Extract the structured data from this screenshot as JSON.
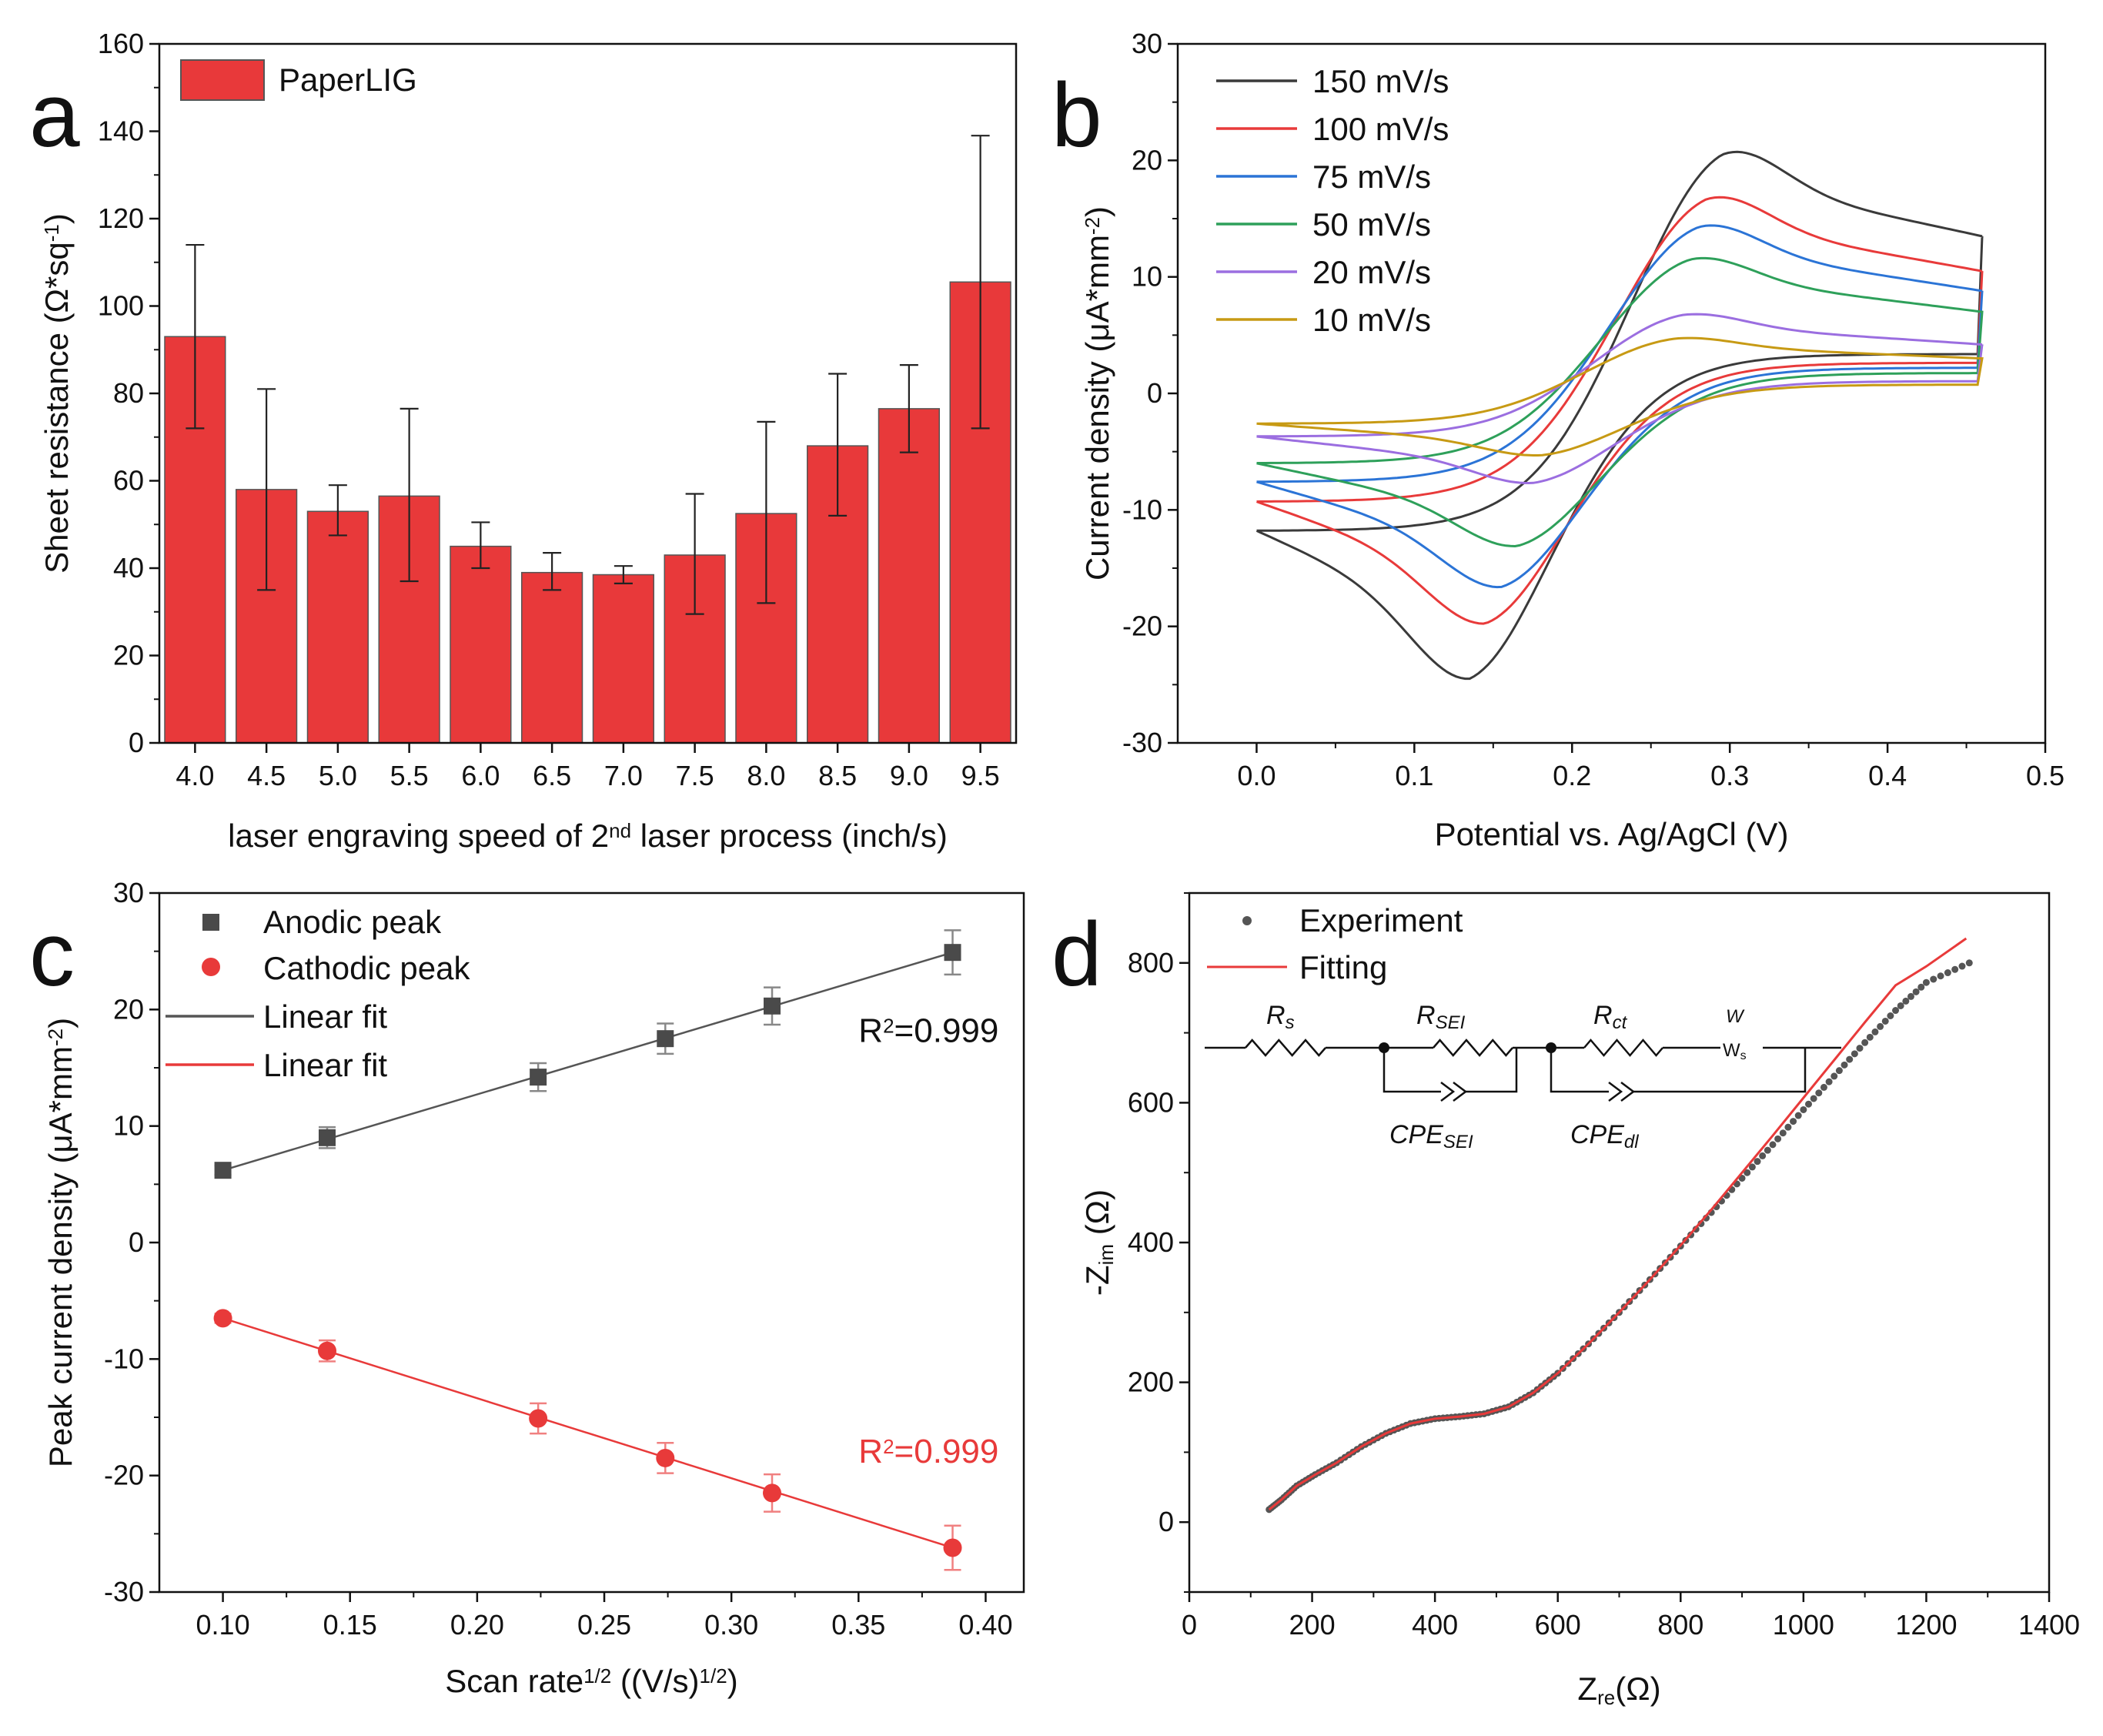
{
  "chart_data": [
    {
      "panel": "a",
      "type": "bar",
      "title": "",
      "xlabel": "laser engraving speed of 2nd laser process (inch/s)",
      "xlabel_parts": [
        "laser engraving speed of 2",
        "nd",
        " laser process (inch/s)"
      ],
      "ylabel": "Sheet resistance (Ω*sq-1)",
      "ylabel_parts": [
        "Sheet resistance (Ω*sq",
        "-1",
        ")"
      ],
      "ylim": [
        0,
        160
      ],
      "yticks": [
        0,
        20,
        40,
        60,
        80,
        100,
        120,
        140,
        160
      ],
      "categories": [
        "4.0",
        "4.5",
        "5.0",
        "5.5",
        "6.0",
        "6.5",
        "7.0",
        "7.5",
        "8.0",
        "8.5",
        "9.0",
        "9.5"
      ],
      "series": [
        {
          "name": "PaperLIG",
          "color": "#e8393a",
          "values": [
            93,
            58,
            53,
            56.5,
            45,
            39,
            38.5,
            43,
            52.5,
            68,
            76.5,
            105.5
          ],
          "err_low": [
            72,
            35,
            47.5,
            37,
            40,
            35,
            36.5,
            29.5,
            32,
            52,
            66.5,
            72
          ],
          "err_high": [
            114,
            81,
            59,
            76.5,
            50.5,
            43.5,
            40.5,
            57,
            73.5,
            84.5,
            86.5,
            139
          ]
        }
      ],
      "legend": "top-left"
    },
    {
      "panel": "b",
      "type": "line",
      "title": "",
      "xlabel": "Potential vs. Ag/AgCl (V)",
      "ylabel": "Current density (μA*mm-2)",
      "ylabel_parts": [
        "Current density (μA*mm",
        "-2",
        ")"
      ],
      "xlim": [
        -0.05,
        0.5
      ],
      "ylim": [
        -30,
        30
      ],
      "xticks": [
        "0.0",
        "0.1",
        "0.2",
        "0.3",
        "0.4",
        "0.5"
      ],
      "yticks": [
        "-30",
        "-20",
        "-10",
        "0",
        "10",
        "20",
        "30"
      ],
      "series": [
        {
          "name": "150 mV/s",
          "color": "#3a3a3a",
          "E_start": 0.0,
          "E_end": 0.46,
          "i_start": -11.8,
          "i_end": 13.5,
          "anodic_peak": [
            0.295,
            23.6
          ],
          "cathodic_peak": [
            0.135,
            -25.8
          ]
        },
        {
          "name": "100 mV/s",
          "color": "#e83a3a",
          "E_start": 0.0,
          "E_end": 0.46,
          "i_start": -9.3,
          "i_end": 10.5,
          "anodic_peak": [
            0.285,
            19.0
          ],
          "cathodic_peak": [
            0.145,
            -20.8
          ]
        },
        {
          "name": "75 mV/s",
          "color": "#2b74d6",
          "E_start": 0.0,
          "E_end": 0.46,
          "i_start": -7.6,
          "i_end": 8.8,
          "anodic_peak": [
            0.28,
            16.2
          ],
          "cathodic_peak": [
            0.155,
            -17.5
          ]
        },
        {
          "name": "50 mV/s",
          "color": "#2ea05a",
          "E_start": 0.0,
          "E_end": 0.46,
          "i_start": -6.0,
          "i_end": 7.0,
          "anodic_peak": [
            0.275,
            13.0
          ],
          "cathodic_peak": [
            0.165,
            -13.8
          ]
        },
        {
          "name": "20 mV/s",
          "color": "#9b6ee0",
          "E_start": 0.0,
          "E_end": 0.46,
          "i_start": -3.7,
          "i_end": 4.2,
          "anodic_peak": [
            0.27,
            7.6
          ],
          "cathodic_peak": [
            0.175,
            -8.1
          ]
        },
        {
          "name": "10 mV/s",
          "color": "#c79a14",
          "E_start": 0.0,
          "E_end": 0.46,
          "i_start": -2.6,
          "i_end": 3.0,
          "anodic_peak": [
            0.265,
            5.3
          ],
          "cathodic_peak": [
            0.18,
            -5.6
          ]
        }
      ],
      "legend": "top-left"
    },
    {
      "panel": "c",
      "type": "scatter",
      "title": "",
      "xlabel": "Scan rate1/2 ((V/s)1/2)",
      "xlabel_parts": [
        "Scan rate",
        "1/2",
        " ((V/s)",
        "1/2",
        ")"
      ],
      "ylabel": "Peak current density (μA*mm-2)",
      "ylabel_parts": [
        "Peak current density (μA*mm",
        "-2",
        ")"
      ],
      "xlim": [
        0.075,
        0.415
      ],
      "ylim": [
        -30,
        30
      ],
      "xticks": [
        "0.10",
        "0.15",
        "0.20",
        "0.25",
        "0.30",
        "0.35",
        "0.40"
      ],
      "yticks": [
        "-30",
        "-20",
        "-10",
        "0",
        "10",
        "20",
        "30"
      ],
      "x": [
        0.1,
        0.141,
        0.224,
        0.274,
        0.316,
        0.387
      ],
      "series": [
        {
          "name": "Anodic peak",
          "marker": "square",
          "color": "#4a4a4a",
          "values": [
            6.2,
            9.0,
            14.2,
            17.5,
            20.3,
            24.9
          ],
          "err": [
            0.4,
            0.9,
            1.2,
            1.3,
            1.6,
            1.9
          ]
        },
        {
          "name": "Cathodic peak",
          "marker": "circle",
          "color": "#e83a3a",
          "values": [
            -6.5,
            -9.3,
            -15.1,
            -18.5,
            -21.5,
            -26.2
          ],
          "err": [
            0.4,
            0.9,
            1.3,
            1.3,
            1.6,
            1.9
          ]
        }
      ],
      "fits": [
        {
          "name": "Linear fit",
          "color": "#555555",
          "x": [
            0.1,
            0.387
          ],
          "y": [
            6.2,
            24.9
          ]
        },
        {
          "name": "Linear fit",
          "color": "#e83a3a",
          "x": [
            0.1,
            0.387
          ],
          "y": [
            -6.5,
            -26.2
          ]
        }
      ],
      "annotations": [
        {
          "text_parts": [
            "R",
            "2",
            "=0.999"
          ],
          "color": "#111111",
          "at": [
            0.35,
            17.2
          ]
        },
        {
          "text_parts": [
            "R",
            "2",
            "=0.999"
          ],
          "color": "#e83a3a",
          "at": [
            0.35,
            -18.9
          ]
        }
      ],
      "legend": "top-left"
    },
    {
      "panel": "d",
      "type": "scatter",
      "title": "",
      "xlabel": "Zre(Ω)",
      "xlabel_parts": [
        "Z",
        "re",
        "(Ω)"
      ],
      "ylabel": "-Zim (Ω)",
      "ylabel_parts": [
        "-Z",
        "im",
        " (Ω)"
      ],
      "xlim": [
        0,
        1400
      ],
      "ylim": [
        -100,
        900
      ],
      "xticks": [
        "0",
        "200",
        "400",
        "600",
        "800",
        "1000",
        "1200",
        "1400"
      ],
      "yticks": [
        "0",
        "200",
        "400",
        "600",
        "800"
      ],
      "experiment": {
        "name": "Experiment",
        "color": "#555555",
        "points": [
          [
            130,
            18
          ],
          [
            150,
            32
          ],
          [
            175,
            52
          ],
          [
            205,
            68
          ],
          [
            240,
            85
          ],
          [
            280,
            108
          ],
          [
            320,
            127
          ],
          [
            360,
            141
          ],
          [
            400,
            148
          ],
          [
            440,
            151
          ],
          [
            480,
            155
          ],
          [
            520,
            165
          ],
          [
            560,
            185
          ],
          [
            600,
            213
          ],
          [
            650,
            255
          ],
          [
            700,
            300
          ],
          [
            750,
            347
          ],
          [
            800,
            395
          ],
          [
            850,
            443
          ],
          [
            900,
            492
          ],
          [
            950,
            540
          ],
          [
            1000,
            590
          ],
          [
            1050,
            638
          ],
          [
            1100,
            686
          ],
          [
            1150,
            732
          ],
          [
            1200,
            772
          ],
          [
            1270,
            800
          ]
        ]
      },
      "fitting": {
        "name": "Fitting",
        "color": "#e83a3a",
        "points": [
          [
            130,
            18
          ],
          [
            150,
            32
          ],
          [
            175,
            52
          ],
          [
            205,
            68
          ],
          [
            240,
            85
          ],
          [
            280,
            108
          ],
          [
            320,
            127
          ],
          [
            360,
            141
          ],
          [
            400,
            148
          ],
          [
            440,
            151
          ],
          [
            480,
            155
          ],
          [
            520,
            165
          ],
          [
            560,
            185
          ],
          [
            600,
            213
          ],
          [
            650,
            255
          ],
          [
            700,
            300
          ],
          [
            750,
            347
          ],
          [
            800,
            396
          ],
          [
            850,
            447
          ],
          [
            900,
            500
          ],
          [
            950,
            553
          ],
          [
            1000,
            607
          ],
          [
            1050,
            661
          ],
          [
            1100,
            715
          ],
          [
            1150,
            768
          ],
          [
            1200,
            795
          ],
          [
            1265,
            835
          ]
        ]
      },
      "circuit": {
        "elements": [
          {
            "symbol": "R",
            "sub": "s"
          },
          {
            "symbol": "R",
            "sub": "SEI"
          },
          {
            "symbol": "R",
            "sub": "ct"
          },
          {
            "symbol": "W",
            "sub": ""
          },
          {
            "symbol": "W",
            "sub": "s"
          },
          {
            "symbol": "CPE",
            "sub": "SEI"
          },
          {
            "symbol": "CPE",
            "sub": "dl"
          }
        ]
      },
      "legend": "top-left"
    }
  ]
}
